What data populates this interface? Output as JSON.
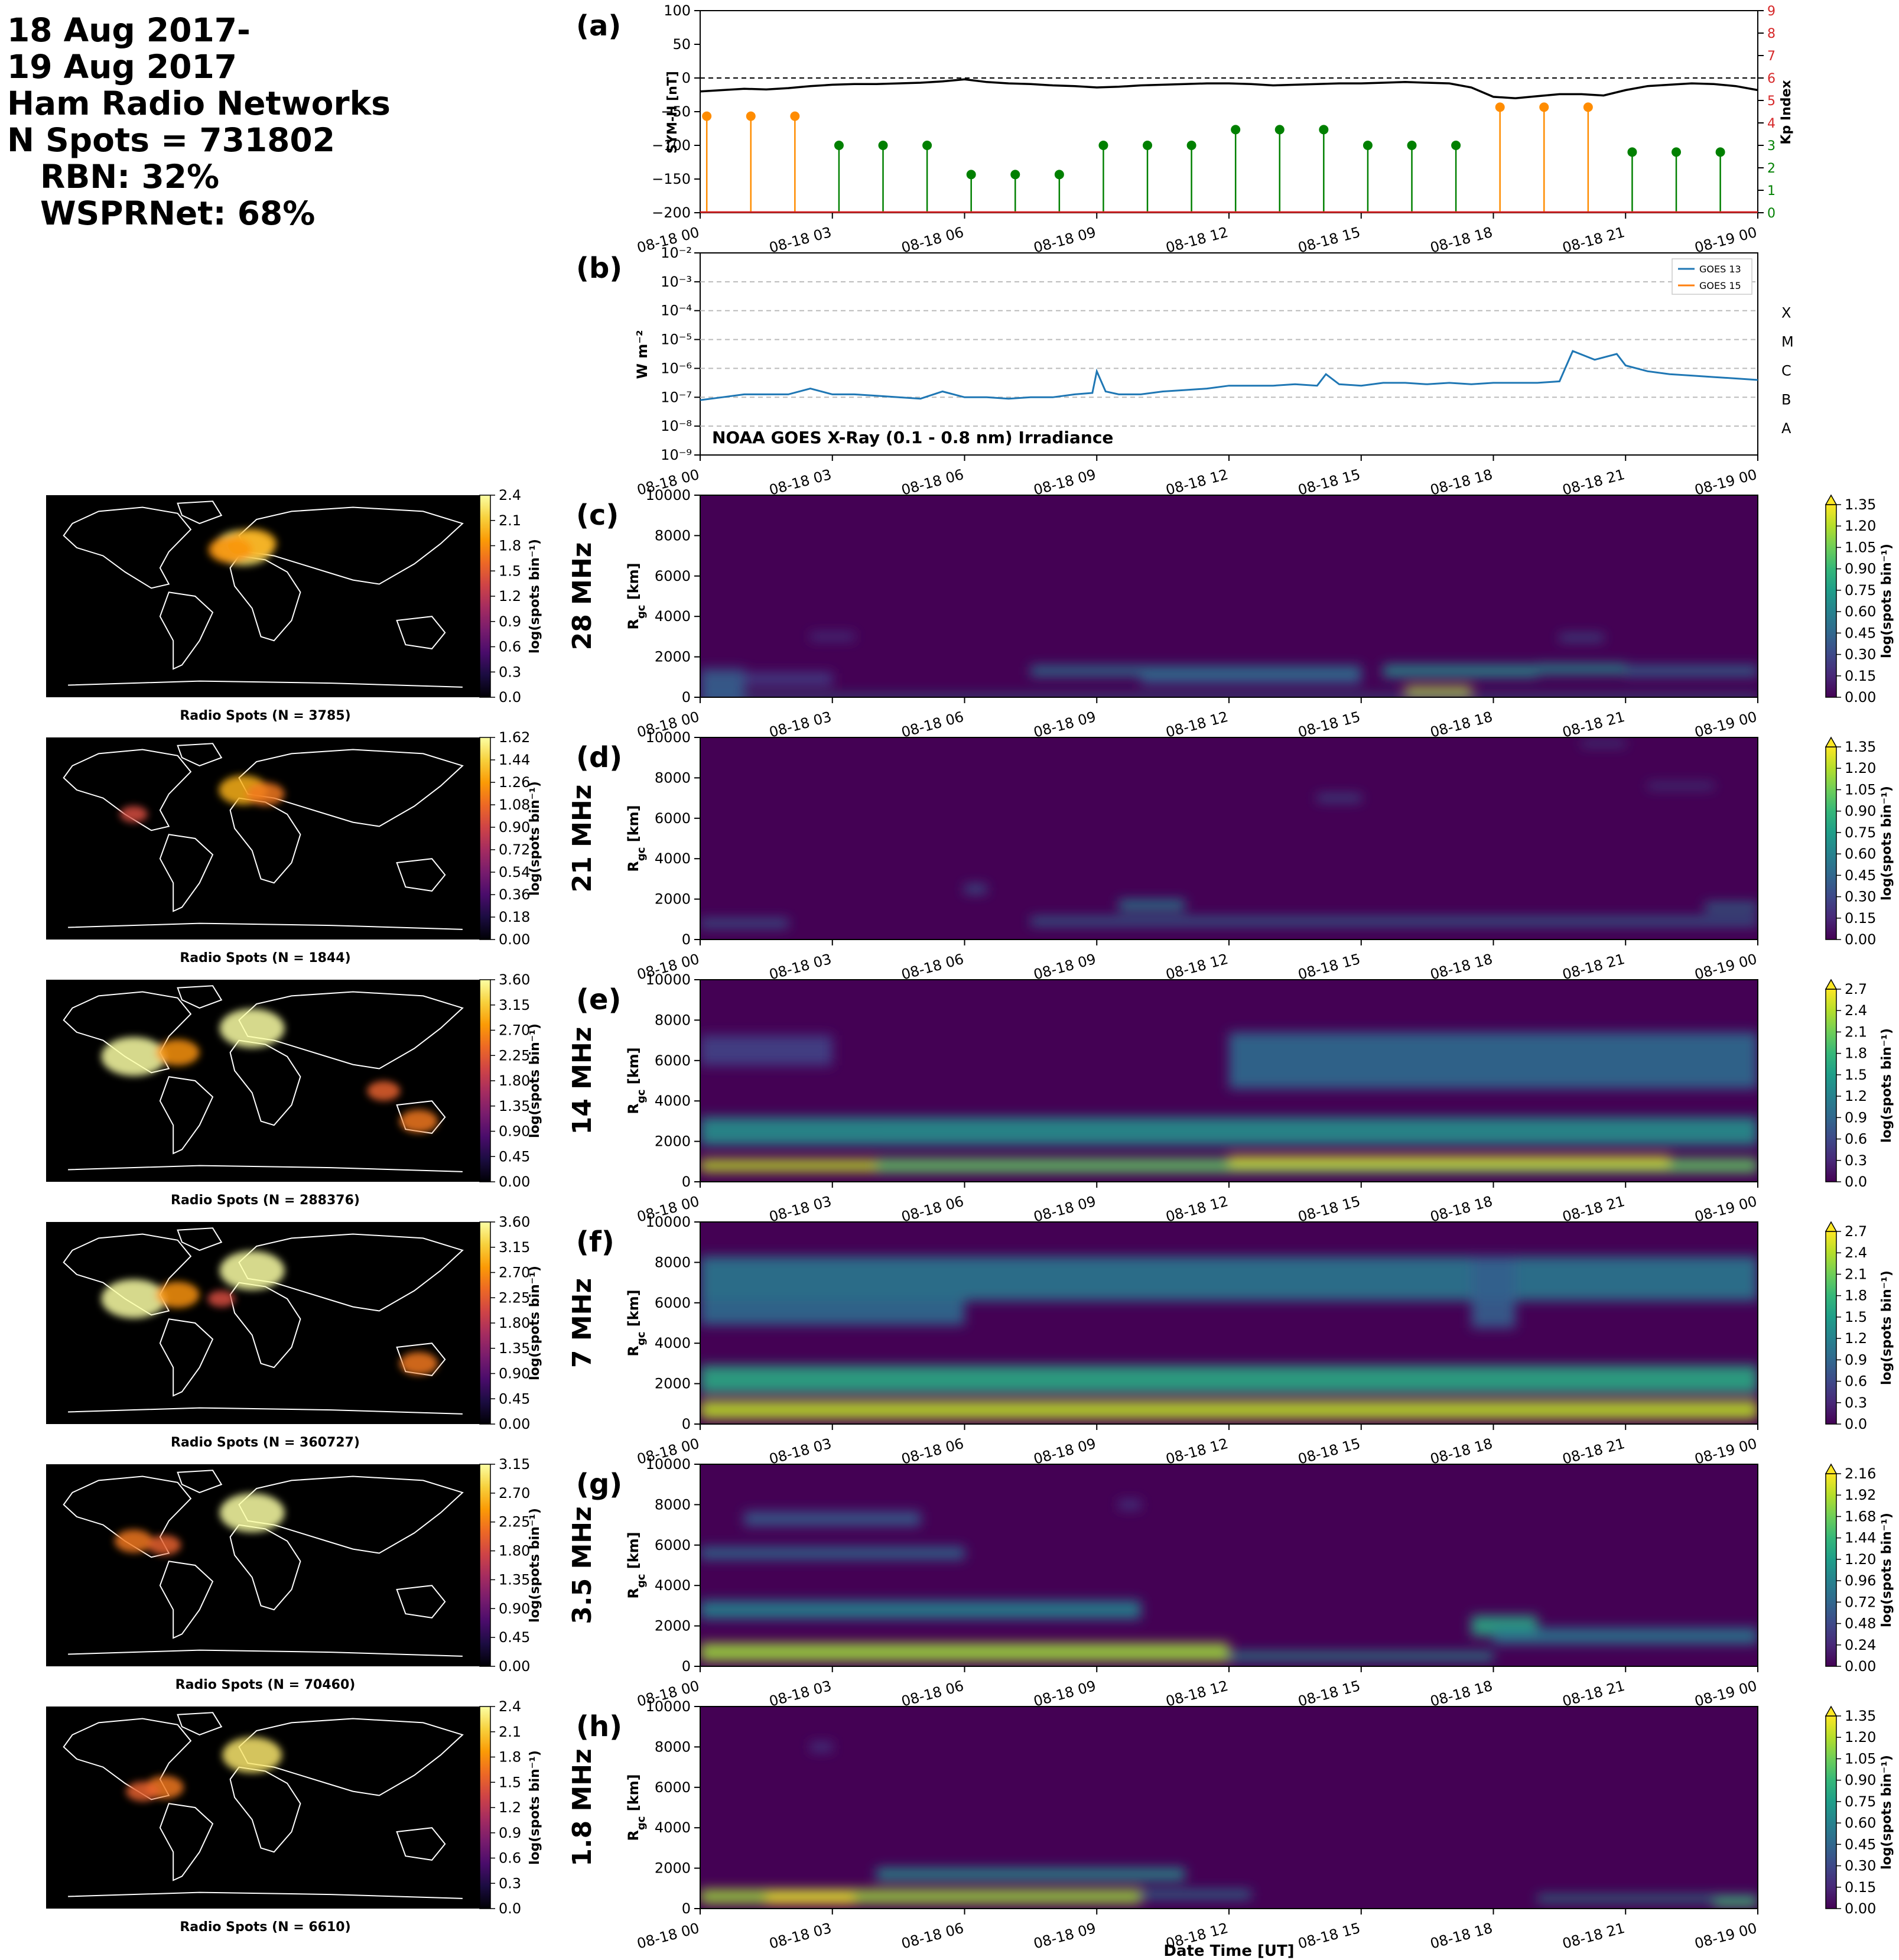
{
  "header": {
    "line1": "18 Aug 2017-",
    "line2": "19 Aug 2017",
    "line3": "Ham Radio Networks",
    "line4": "N Spots = 731802",
    "line5": "RBN: 32%",
    "line6": "WSPRNet: 68%"
  },
  "time_ticks": [
    "08-18 00",
    "08-18 03",
    "08-18 06",
    "08-18 09",
    "08-18 12",
    "08-18 15",
    "08-18 18",
    "08-18 21",
    "08-19 00"
  ],
  "xlabel": "Date Time [UT]",
  "chart_data": [
    {
      "id": "a",
      "panel_label": "(a)",
      "type": "line",
      "ylabel": "SYM-H [nT]",
      "ylim": [
        -200,
        100
      ],
      "yticks": [
        "100",
        "50",
        "0",
        "−50",
        "−100",
        "−150",
        "−200"
      ],
      "y2label": "Kp Index",
      "y2lim": [
        0,
        9
      ],
      "y2ticks": [
        "0",
        "1",
        "2",
        "3",
        "4",
        "5",
        "6",
        "7",
        "8",
        "9"
      ],
      "reference_line": 0,
      "symh": {
        "x_hours": [
          0,
          0.5,
          1,
          1.5,
          2,
          2.5,
          3,
          3.5,
          4,
          4.5,
          5,
          5.5,
          6,
          6.5,
          7,
          7.5,
          8,
          8.5,
          9,
          9.5,
          10,
          10.5,
          11,
          11.5,
          12,
          12.5,
          13,
          13.5,
          14,
          14.5,
          15,
          15.5,
          16,
          16.5,
          17,
          17.5,
          18,
          18.5,
          19,
          19.5,
          20,
          20.5,
          21,
          21.5,
          22,
          22.5,
          23,
          23.5,
          24
        ],
        "values": [
          -20,
          -18,
          -16,
          -17,
          -15,
          -12,
          -10,
          -9,
          -9,
          -8,
          -7,
          -5,
          -2,
          -6,
          -8,
          -9,
          -11,
          -12,
          -14,
          -13,
          -11,
          -10,
          -9,
          -8,
          -8,
          -9,
          -11,
          -10,
          -9,
          -8,
          -8,
          -7,
          -6,
          -7,
          -8,
          -14,
          -28,
          -30,
          -27,
          -24,
          -24,
          -26,
          -18,
          -12,
          -10,
          -8,
          -9,
          -12,
          -18
        ]
      },
      "kp": {
        "x_hours": [
          0,
          1,
          2,
          3,
          4,
          5,
          6,
          7,
          8,
          9,
          10,
          11,
          12,
          13,
          14,
          15,
          16,
          17,
          18,
          19,
          20,
          21,
          22,
          23
        ],
        "values": [
          4.3,
          4.3,
          4.3,
          3,
          3,
          3,
          1.7,
          1.7,
          1.7,
          3,
          3,
          3,
          3.7,
          3.7,
          3.7,
          3,
          3,
          3,
          4.7,
          4.7,
          4.7,
          2.7,
          2.7,
          2.7
        ],
        "colors": {
          "high": "#ff8c00",
          "low": "#008000"
        }
      }
    },
    {
      "id": "b",
      "panel_label": "(b)",
      "type": "line",
      "ylabel": "W m⁻²",
      "ylim_log10": [
        -9,
        -2
      ],
      "yticks": [
        "10⁻²",
        "10⁻³",
        "10⁻⁴",
        "10⁻⁵",
        "10⁻⁶",
        "10⁻⁷",
        "10⁻⁸",
        "10⁻⁹"
      ],
      "flare_classes": [
        "X",
        "M",
        "C",
        "B",
        "A"
      ],
      "annotation": "NOAA GOES X-Ray (0.1 - 0.8 nm) Irradiance",
      "legend": [
        "GOES 13",
        "GOES 15"
      ],
      "legend_colors": [
        "#1f77b4",
        "#ff7f0e"
      ],
      "series": [
        {
          "name": "GOES 13",
          "x_hours": [
            0,
            0.5,
            1,
            1.5,
            2,
            2.5,
            3,
            3.5,
            4,
            4.5,
            5,
            5.5,
            6,
            6.5,
            7,
            7.5,
            8,
            8.5,
            8.9,
            9.0,
            9.2,
            9.5,
            10,
            10.5,
            11,
            11.5,
            12,
            12.5,
            13,
            13.5,
            14,
            14.2,
            14.5,
            15,
            15.5,
            16,
            16.5,
            17,
            17.5,
            18,
            18.5,
            19,
            19.5,
            19.8,
            20.3,
            20.8,
            21,
            21.5,
            22,
            22.5,
            23,
            23.5,
            24
          ],
          "log10_values": [
            -7.1,
            -7.0,
            -6.9,
            -6.9,
            -6.9,
            -6.7,
            -6.9,
            -6.9,
            -6.95,
            -7.0,
            -7.05,
            -6.8,
            -7.0,
            -7.0,
            -7.05,
            -7.0,
            -7.0,
            -6.9,
            -6.85,
            -6.1,
            -6.8,
            -6.9,
            -6.9,
            -6.8,
            -6.75,
            -6.7,
            -6.6,
            -6.6,
            -6.6,
            -6.55,
            -6.6,
            -6.2,
            -6.55,
            -6.6,
            -6.5,
            -6.5,
            -6.55,
            -6.5,
            -6.55,
            -6.5,
            -6.5,
            -6.5,
            -6.45,
            -5.4,
            -5.7,
            -5.5,
            -5.9,
            -6.1,
            -6.2,
            -6.25,
            -6.3,
            -6.35,
            -6.4
          ]
        }
      ]
    },
    {
      "id": "c",
      "panel_label": "(c)",
      "type": "heatmap",
      "band": "28 MHz",
      "ylabel": "R_gc [km]",
      "ylim": [
        0,
        10000
      ],
      "yticks": [
        "10000",
        "8000",
        "6000",
        "4000",
        "2000",
        "0"
      ],
      "colorbar": {
        "label": "log(spots bin⁻¹)",
        "ticks": [
          "1.35",
          "1.20",
          "1.05",
          "0.90",
          "0.75",
          "0.60",
          "0.45",
          "0.30",
          "0.15",
          "0.00"
        ]
      },
      "blobs": [
        [
          0,
          24,
          0,
          200,
          0.45
        ],
        [
          0,
          1,
          500,
          1800,
          0.3
        ],
        [
          1,
          3,
          900,
          600,
          0.2
        ],
        [
          7.5,
          15,
          1300,
          500,
          0.4
        ],
        [
          10,
          15,
          900,
          500,
          0.3
        ],
        [
          15.5,
          19,
          1300,
          600,
          0.5
        ],
        [
          16,
          17.5,
          300,
          400,
          0.9
        ],
        [
          19,
          21,
          1400,
          500,
          0.5
        ],
        [
          19.5,
          20.5,
          2950,
          300,
          0.3
        ],
        [
          21,
          24,
          1300,
          500,
          0.35
        ],
        [
          2.5,
          3.5,
          3000,
          300,
          0.2
        ]
      ],
      "map": {
        "caption": "Radio Spots (N = 3785)",
        "colorbar_label": "log(spots bin⁻¹)",
        "ticks": [
          "2.4",
          "2.1",
          "1.8",
          "1.5",
          "1.2",
          "0.9",
          "0.6",
          "0.3",
          "0.0"
        ],
        "spots": [
          [
            0.45,
            0.26,
            0.9
          ],
          [
            0.47,
            0.24,
            0.7
          ],
          [
            0.42,
            0.27,
            0.6
          ]
        ]
      }
    },
    {
      "id": "d",
      "panel_label": "(d)",
      "type": "heatmap",
      "band": "21 MHz",
      "ylabel": "R_gc [km]",
      "ylim": [
        0,
        10000
      ],
      "yticks": [
        "10000",
        "8000",
        "6000",
        "4000",
        "2000",
        "0"
      ],
      "colorbar": {
        "label": "log(spots bin⁻¹)",
        "ticks": [
          "1.35",
          "1.20",
          "1.05",
          "0.90",
          "0.75",
          "0.60",
          "0.45",
          "0.30",
          "0.15",
          "0.00"
        ]
      },
      "blobs": [
        [
          0,
          2,
          800,
          400,
          0.3
        ],
        [
          7.5,
          24,
          900,
          400,
          0.35
        ],
        [
          9.5,
          11,
          1700,
          500,
          0.45
        ],
        [
          6,
          6.5,
          2500,
          400,
          0.3
        ],
        [
          14,
          15,
          7000,
          300,
          0.3
        ],
        [
          20,
          21,
          9700,
          200,
          0.3
        ],
        [
          21.5,
          23,
          7600,
          200,
          0.3
        ],
        [
          22.8,
          24,
          1600,
          400,
          0.4
        ]
      ],
      "map": {
        "caption": "Radio Spots (N = 1844)",
        "colorbar_label": "log(spots bin⁻¹)",
        "ticks": [
          "1.62",
          "1.44",
          "1.26",
          "1.08",
          "0.90",
          "0.72",
          "0.54",
          "0.36",
          "0.18",
          "0.00"
        ],
        "spots": [
          [
            0.45,
            0.26,
            0.7
          ],
          [
            0.5,
            0.28,
            0.5
          ],
          [
            0.2,
            0.38,
            0.3
          ]
        ]
      }
    },
    {
      "id": "e",
      "panel_label": "(e)",
      "type": "heatmap",
      "band": "14 MHz",
      "ylabel": "R_gc [km]",
      "ylim": [
        0,
        10000
      ],
      "yticks": [
        "10000",
        "8000",
        "6000",
        "4000",
        "2000",
        "0"
      ],
      "colorbar": {
        "label": "log(spots bin⁻¹)",
        "ticks": [
          "2.7",
          "2.4",
          "2.1",
          "1.8",
          "1.5",
          "1.2",
          "0.9",
          "0.6",
          "0.3",
          "0.0"
        ]
      },
      "blobs": [
        [
          0,
          4,
          800,
          600,
          0.9
        ],
        [
          0,
          4,
          2500,
          1400,
          0.5
        ],
        [
          4,
          24,
          800,
          700,
          0.75
        ],
        [
          12,
          22,
          1000,
          500,
          0.95
        ],
        [
          4,
          24,
          2500,
          1400,
          0.5
        ],
        [
          12,
          24,
          6000,
          2800,
          0.35
        ],
        [
          0,
          3,
          6500,
          1500,
          0.2
        ]
      ],
      "map": {
        "caption": "Radio Spots (N = 288376)",
        "colorbar_label": "log(spots bin⁻¹)",
        "ticks": [
          "3.60",
          "3.15",
          "2.70",
          "2.25",
          "1.80",
          "1.35",
          "0.90",
          "0.45",
          "0.00"
        ],
        "spots": [
          [
            0.2,
            0.38,
            1
          ],
          [
            0.47,
            0.24,
            1
          ],
          [
            0.3,
            0.36,
            0.6
          ],
          [
            0.85,
            0.7,
            0.5
          ],
          [
            0.77,
            0.55,
            0.4
          ]
        ]
      }
    },
    {
      "id": "f",
      "panel_label": "(f)",
      "type": "heatmap",
      "band": "7 MHz",
      "ylabel": "R_gc [km]",
      "ylim": [
        0,
        10000
      ],
      "yticks": [
        "10000",
        "8000",
        "6000",
        "4000",
        "2000",
        "0"
      ],
      "colorbar": {
        "label": "log(spots bin⁻¹)",
        "ticks": [
          "2.7",
          "2.4",
          "2.1",
          "1.8",
          "1.5",
          "1.2",
          "0.9",
          "0.6",
          "0.3",
          "0.0"
        ]
      },
      "blobs": [
        [
          0,
          24,
          700,
          900,
          0.9
        ],
        [
          0,
          24,
          2200,
          1400,
          0.6
        ],
        [
          0,
          24,
          7200,
          2200,
          0.4
        ],
        [
          0,
          6,
          5500,
          1200,
          0.35
        ],
        [
          17.5,
          18.5,
          6500,
          3500,
          0.3
        ]
      ],
      "map": {
        "caption": "Radio Spots (N = 360727)",
        "colorbar_label": "log(spots bin⁻¹)",
        "ticks": [
          "3.60",
          "3.15",
          "2.70",
          "2.25",
          "1.80",
          "1.35",
          "0.90",
          "0.45",
          "0.00"
        ],
        "spots": [
          [
            0.2,
            0.38,
            1
          ],
          [
            0.47,
            0.24,
            1
          ],
          [
            0.3,
            0.36,
            0.6
          ],
          [
            0.85,
            0.7,
            0.5
          ],
          [
            0.4,
            0.38,
            0.3
          ]
        ]
      }
    },
    {
      "id": "g",
      "panel_label": "(g)",
      "type": "heatmap",
      "band": "3.5 MHz",
      "ylabel": "R_gc [km]",
      "ylim": [
        0,
        10000
      ],
      "yticks": [
        "10000",
        "8000",
        "6000",
        "4000",
        "2000",
        "0"
      ],
      "colorbar": {
        "label": "log(spots bin⁻¹)",
        "ticks": [
          "2.16",
          "1.92",
          "1.68",
          "1.44",
          "1.20",
          "0.96",
          "0.72",
          "0.48",
          "0.24",
          "0.00"
        ]
      },
      "blobs": [
        [
          0,
          12,
          700,
          900,
          0.85
        ],
        [
          0,
          10,
          2800,
          900,
          0.45
        ],
        [
          0,
          6,
          5600,
          600,
          0.35
        ],
        [
          1,
          5,
          7300,
          700,
          0.3
        ],
        [
          12,
          18,
          500,
          400,
          0.5
        ],
        [
          17.5,
          19,
          2000,
          1000,
          0.6
        ],
        [
          18,
          24,
          1500,
          800,
          0.4
        ],
        [
          9.5,
          10,
          8000,
          400,
          0.2
        ]
      ],
      "map": {
        "caption": "Radio Spots (N = 70460)",
        "colorbar_label": "log(spots bin⁻¹)",
        "ticks": [
          "3.15",
          "2.70",
          "2.25",
          "1.80",
          "1.35",
          "0.90",
          "0.45",
          "0.00"
        ],
        "spots": [
          [
            0.47,
            0.24,
            1
          ],
          [
            0.2,
            0.38,
            0.5
          ],
          [
            0.27,
            0.4,
            0.4
          ]
        ]
      }
    },
    {
      "id": "h",
      "panel_label": "(h)",
      "type": "heatmap",
      "band": "1.8 MHz",
      "ylabel": "R_gc [km]",
      "ylim": [
        0,
        10000
      ],
      "yticks": [
        "10000",
        "8000",
        "6000",
        "4000",
        "2000",
        "0"
      ],
      "colorbar": {
        "label": "log(spots bin⁻¹)",
        "ticks": [
          "1.35",
          "1.20",
          "1.05",
          "0.90",
          "0.75",
          "0.60",
          "0.45",
          "0.30",
          "0.15",
          "0.00"
        ]
      },
      "blobs": [
        [
          0,
          10,
          600,
          700,
          0.85
        ],
        [
          1.5,
          3.5,
          500,
          500,
          1.0
        ],
        [
          4,
          11,
          1700,
          600,
          0.5
        ],
        [
          10,
          12.5,
          700,
          400,
          0.4
        ],
        [
          2.5,
          3,
          8000,
          400,
          0.2
        ],
        [
          19,
          24,
          500,
          300,
          0.5
        ],
        [
          23,
          24,
          300,
          400,
          0.7
        ]
      ],
      "map": {
        "caption": "Radio Spots (N = 6610)",
        "colorbar_label": "log(spots bin⁻¹)",
        "ticks": [
          "2.4",
          "2.1",
          "1.8",
          "1.5",
          "1.2",
          "0.9",
          "0.6",
          "0.3",
          "0.0"
        ],
        "spots": [
          [
            0.47,
            0.24,
            0.9
          ],
          [
            0.27,
            0.4,
            0.5
          ],
          [
            0.22,
            0.42,
            0.4
          ]
        ]
      }
    }
  ]
}
